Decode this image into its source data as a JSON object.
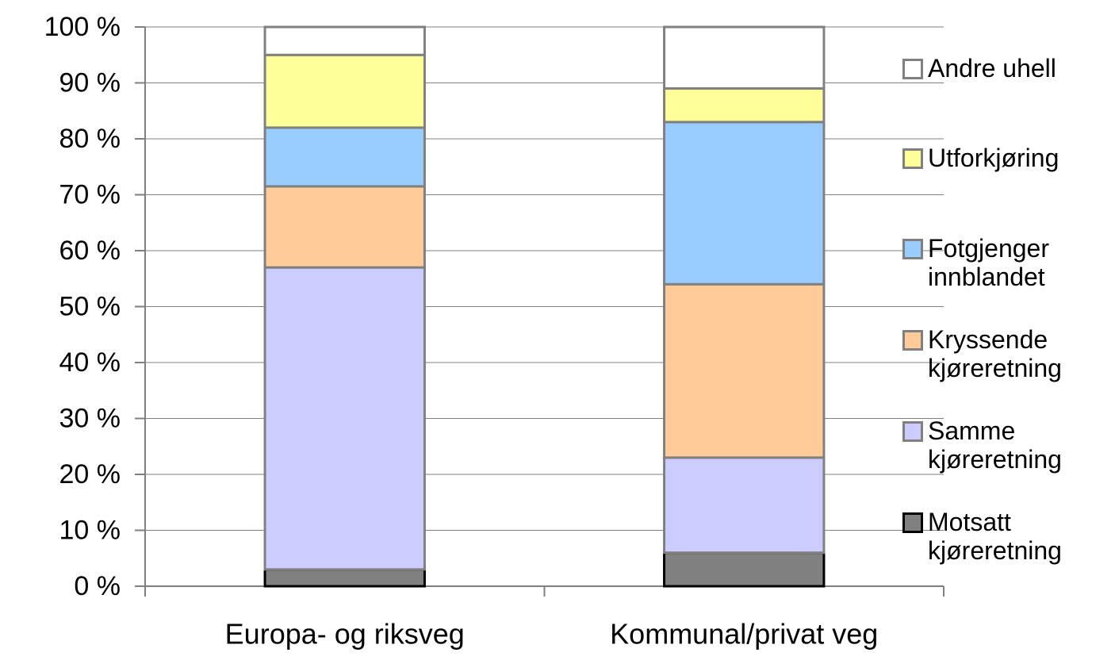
{
  "chart_data": {
    "type": "stacked_bar",
    "categories": [
      "Europa- og riksveg",
      "Kommunal/privat veg"
    ],
    "series": [
      {
        "name": "Motsatt kjøreretning",
        "color": "#808080",
        "values": [
          3,
          6
        ]
      },
      {
        "name": "Samme kjøreretning",
        "color": "#ccccff",
        "values": [
          54,
          17
        ]
      },
      {
        "name": "Kryssende kjøreretning",
        "color": "#ffcc99",
        "values": [
          14.5,
          31
        ]
      },
      {
        "name": "Fotgjenger innblandet",
        "color": "#99ccff",
        "values": [
          10.5,
          29
        ]
      },
      {
        "name": "Utforkjøring",
        "color": "#ffff99",
        "values": [
          13,
          6
        ]
      },
      {
        "name": "Andre uhell",
        "color": "#ffffff",
        "values": [
          5,
          11
        ]
      }
    ],
    "ylim": [
      0,
      100
    ],
    "yticks": [
      {
        "value": 0,
        "label": "0 %"
      },
      {
        "value": 10,
        "label": "10 %"
      },
      {
        "value": 20,
        "label": "20 %"
      },
      {
        "value": 30,
        "label": "30 %"
      },
      {
        "value": 40,
        "label": "40 %"
      },
      {
        "value": 50,
        "label": "50 %"
      },
      {
        "value": 60,
        "label": "60 %"
      },
      {
        "value": 70,
        "label": "70 %"
      },
      {
        "value": 80,
        "label": "80 %"
      },
      {
        "value": 90,
        "label": "90 %"
      },
      {
        "value": 100,
        "label": "100 %"
      }
    ],
    "grid": true,
    "legend": "right"
  }
}
